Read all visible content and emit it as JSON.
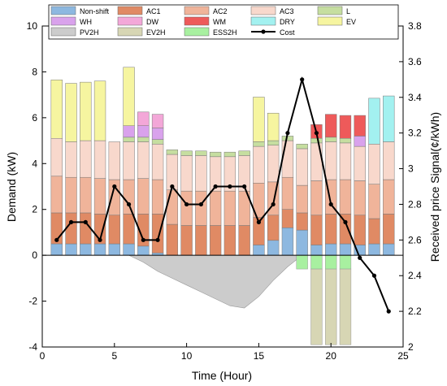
{
  "chart_data": {
    "type": "bar",
    "xlabel": "Time (Hour)",
    "ylabel": "Demand (kW)",
    "y2label": "Received price Signal(¢/kWh)",
    "xlim": [
      0,
      25
    ],
    "ylim": [
      -4,
      10
    ],
    "y2lim": [
      2,
      3.8
    ],
    "xticks": [
      "0",
      "5",
      "10",
      "15",
      "20",
      "25"
    ],
    "yticks": [
      "-4",
      "-2",
      "0",
      "2",
      "4",
      "6",
      "8",
      "10"
    ],
    "y2ticks": [
      "2",
      "2.2",
      "2.4",
      "2.6",
      "2.8",
      "3",
      "3.2",
      "3.4",
      "3.6",
      "3.8"
    ],
    "hours": [
      1,
      2,
      3,
      4,
      5,
      6,
      7,
      8,
      9,
      10,
      11,
      12,
      13,
      14,
      15,
      16,
      17,
      18,
      19,
      20,
      21,
      22,
      23,
      24
    ],
    "legend_position": "top",
    "series": [
      {
        "name": "Non-shift",
        "color": "#8db8e0",
        "values": [
          0.5,
          0.5,
          0.5,
          0.5,
          0.5,
          0.5,
          0.4,
          0.1,
          0,
          0,
          0,
          0,
          0,
          0,
          0.45,
          0.65,
          1.2,
          1.1,
          0.45,
          0.5,
          0.5,
          0.45,
          0.5,
          0.5
        ]
      },
      {
        "name": "AC1",
        "color": "#e08a64",
        "values": [
          1.35,
          1.35,
          1.35,
          1.3,
          1.25,
          1.3,
          1.4,
          1.7,
          1.35,
          1.3,
          1.3,
          1.3,
          1.3,
          1.3,
          1.2,
          1.1,
          0.8,
          0.75,
          1.3,
          1.3,
          1.3,
          1.3,
          1.1,
          1.3
        ]
      },
      {
        "name": "AC2",
        "color": "#f0b49a",
        "values": [
          1.6,
          1.55,
          1.55,
          1.55,
          1.55,
          1.5,
          1.55,
          1.5,
          1.5,
          1.5,
          1.5,
          1.5,
          1.5,
          1.5,
          1.5,
          1.45,
          1.4,
          1.2,
          1.5,
          1.5,
          1.5,
          1.5,
          1.5,
          1.5
        ]
      },
      {
        "name": "AC3",
        "color": "#f8d8cc",
        "values": [
          1.65,
          1.55,
          1.6,
          1.65,
          1.65,
          1.65,
          1.6,
          1.55,
          1.55,
          1.55,
          1.55,
          1.5,
          1.5,
          1.55,
          1.6,
          1.6,
          1.6,
          1.6,
          1.65,
          1.65,
          1.6,
          1.5,
          1.75,
          1.65
        ]
      },
      {
        "name": "L",
        "color": "#c6dea0",
        "values": [
          0,
          0,
          0,
          0,
          0,
          0.2,
          0.2,
          0.2,
          0.2,
          0.2,
          0.2,
          0.2,
          0.2,
          0.2,
          0.2,
          0.2,
          0.2,
          0.2,
          0.2,
          0.2,
          0.2,
          0,
          0,
          0
        ]
      },
      {
        "name": "WH",
        "color": "#d9a2ec",
        "values": [
          0,
          0,
          0,
          0,
          0,
          0.5,
          0.5,
          0.5,
          0,
          0,
          0,
          0,
          0,
          0,
          0,
          0,
          0,
          0,
          0,
          0,
          0,
          0.45,
          0,
          0
        ]
      },
      {
        "name": "DW",
        "color": "#f3a7d8",
        "values": [
          0,
          0,
          0,
          0,
          0,
          0,
          0.6,
          0.6,
          0,
          0,
          0,
          0,
          0,
          0,
          0,
          0,
          0,
          0,
          0,
          0,
          0,
          0,
          0,
          0
        ]
      },
      {
        "name": "WM",
        "color": "#ee5a5a",
        "values": [
          0,
          0,
          0,
          0,
          0,
          0,
          0,
          0,
          0,
          0,
          0,
          0,
          0,
          0,
          0,
          0,
          0,
          0,
          0.6,
          1,
          1,
          0.9,
          0,
          0
        ]
      },
      {
        "name": "DRY",
        "color": "#a3f1f0",
        "values": [
          0,
          0,
          0,
          0,
          0,
          0,
          0,
          0,
          0,
          0,
          0,
          0,
          0,
          0,
          0,
          0,
          0,
          0,
          0,
          0,
          0,
          0,
          2,
          2
        ]
      },
      {
        "name": "EV",
        "color": "#f6f5a0",
        "values": [
          2.55,
          2.55,
          2.55,
          2.6,
          0,
          2.55,
          0,
          0,
          0,
          0,
          0,
          0,
          0,
          0,
          1.95,
          1.2,
          0,
          0,
          0,
          0,
          0,
          0,
          0,
          0
        ]
      },
      {
        "name": "PV2H",
        "color": "#cccccc",
        "values": [
          0,
          0,
          0,
          0,
          0,
          0,
          -0.3,
          -0.7,
          -1.0,
          -1.3,
          -1.6,
          -1.9,
          -2.2,
          -2.3,
          -1.8,
          -1.1,
          -0.5,
          0,
          0,
          0,
          0,
          0,
          0,
          0
        ]
      },
      {
        "name": "EV2H",
        "color": "#d7d6b4",
        "values": [
          0,
          0,
          0,
          0,
          0,
          0,
          0,
          0,
          0,
          0,
          0,
          0,
          0,
          0,
          0,
          0,
          0,
          0,
          -3.3,
          -3.3,
          -3.3,
          0,
          0,
          0
        ]
      },
      {
        "name": "ESS2H",
        "color": "#a8f0a0",
        "values": [
          0,
          0,
          0,
          0,
          0,
          0,
          0,
          0,
          0,
          0,
          0,
          0,
          0,
          0,
          0,
          0,
          0,
          -0.6,
          -0.6,
          -0.6,
          -0.6,
          0,
          0,
          0
        ]
      },
      {
        "name": "Cost",
        "color": "#000000",
        "line": true,
        "axis": "right",
        "values": [
          2.6,
          2.7,
          2.7,
          2.6,
          2.9,
          2.8,
          2.6,
          2.6,
          2.9,
          2.8,
          2.8,
          2.9,
          2.9,
          2.9,
          2.7,
          2.8,
          3.2,
          3.5,
          3.2,
          2.8,
          2.7,
          2.5,
          2.4,
          2.2
        ]
      }
    ]
  }
}
